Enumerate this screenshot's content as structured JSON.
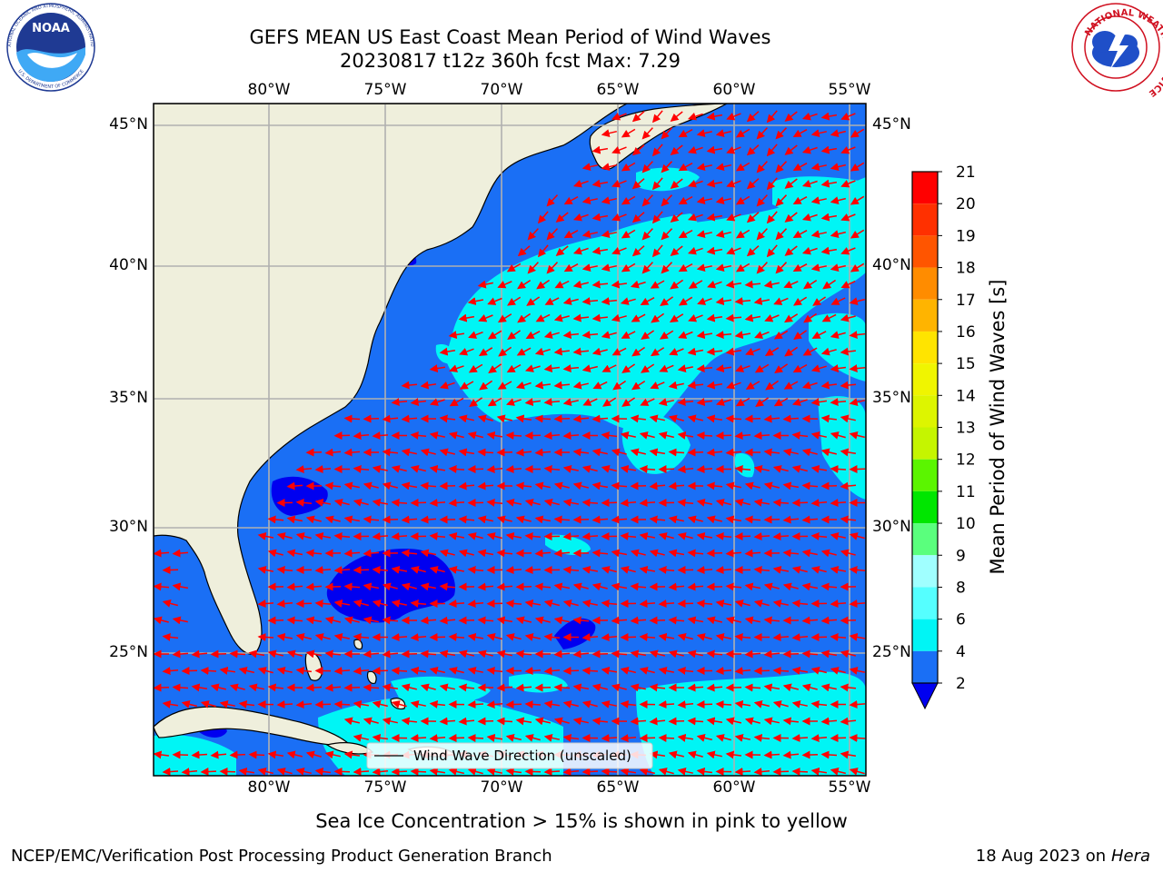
{
  "title": {
    "line1": "GEFS MEAN US East Coast Mean Period of Wind Waves",
    "line2": "20230817 t12z 360h fcst   Max: 7.29"
  },
  "map": {
    "lon_ticks": [
      "80°W",
      "75°W",
      "70°W",
      "65°W",
      "60°W",
      "55°W"
    ],
    "lat_ticks": [
      "45°N",
      "40°N",
      "35°N",
      "30°N",
      "25°N"
    ],
    "legend_label": "Wind Wave Direction (unscaled)",
    "colors": {
      "land": "#efefdc",
      "ocean_low": "#1a6ff5",
      "ocean_mid": "#00f5f5",
      "ocean_min": "#0000f0",
      "arrow": "#ff0000",
      "grid": "#b0b0b0"
    }
  },
  "colorbar": {
    "label": "Mean Period of Wind Waves [s]",
    "ticks": [
      "21",
      "20",
      "19",
      "18",
      "17",
      "16",
      "15",
      "14",
      "13",
      "12",
      "11",
      "10",
      "9",
      "8",
      "6",
      "4",
      "2"
    ],
    "bins": [
      {
        "from": 20,
        "to": 21,
        "color": "#ff0000"
      },
      {
        "from": 19,
        "to": 20,
        "color": "#ff3000"
      },
      {
        "from": 18,
        "to": 19,
        "color": "#ff5500"
      },
      {
        "from": 17,
        "to": 18,
        "color": "#ff8c00"
      },
      {
        "from": 16,
        "to": 17,
        "color": "#ffb400"
      },
      {
        "from": 15,
        "to": 16,
        "color": "#ffe400"
      },
      {
        "from": 14,
        "to": 15,
        "color": "#f0f500"
      },
      {
        "from": 13,
        "to": 14,
        "color": "#ddf500"
      },
      {
        "from": 12,
        "to": 13,
        "color": "#c5f500"
      },
      {
        "from": 11,
        "to": 12,
        "color": "#5bf500"
      },
      {
        "from": 10,
        "to": 11,
        "color": "#00e600"
      },
      {
        "from": 9,
        "to": 10,
        "color": "#5aff7d"
      },
      {
        "from": 8,
        "to": 9,
        "color": "#a0ffff"
      },
      {
        "from": 6,
        "to": 8,
        "color": "#55ffff"
      },
      {
        "from": 4,
        "to": 6,
        "color": "#00f5f5"
      },
      {
        "from": 2,
        "to": 4,
        "color": "#1a6ff5"
      }
    ],
    "under_color": "#0000f0"
  },
  "footer": {
    "note": "Sea Ice Concentration > 15% is shown in pink to yellow",
    "credit": "NCEP/EMC/Verification Post Processing Product Generation Branch",
    "date": "18 Aug 2023 on",
    "machine": "Hera"
  },
  "logos": {
    "noaa_text": "NOAA",
    "noaa_ring_top": "NATIONAL OCEANIC AND ATMOSPHERIC ADMINISTRATION",
    "noaa_ring_bottom": "U.S. DEPARTMENT OF COMMERCE",
    "nws_ring": "NATIONAL WEATHER SERVICE"
  }
}
